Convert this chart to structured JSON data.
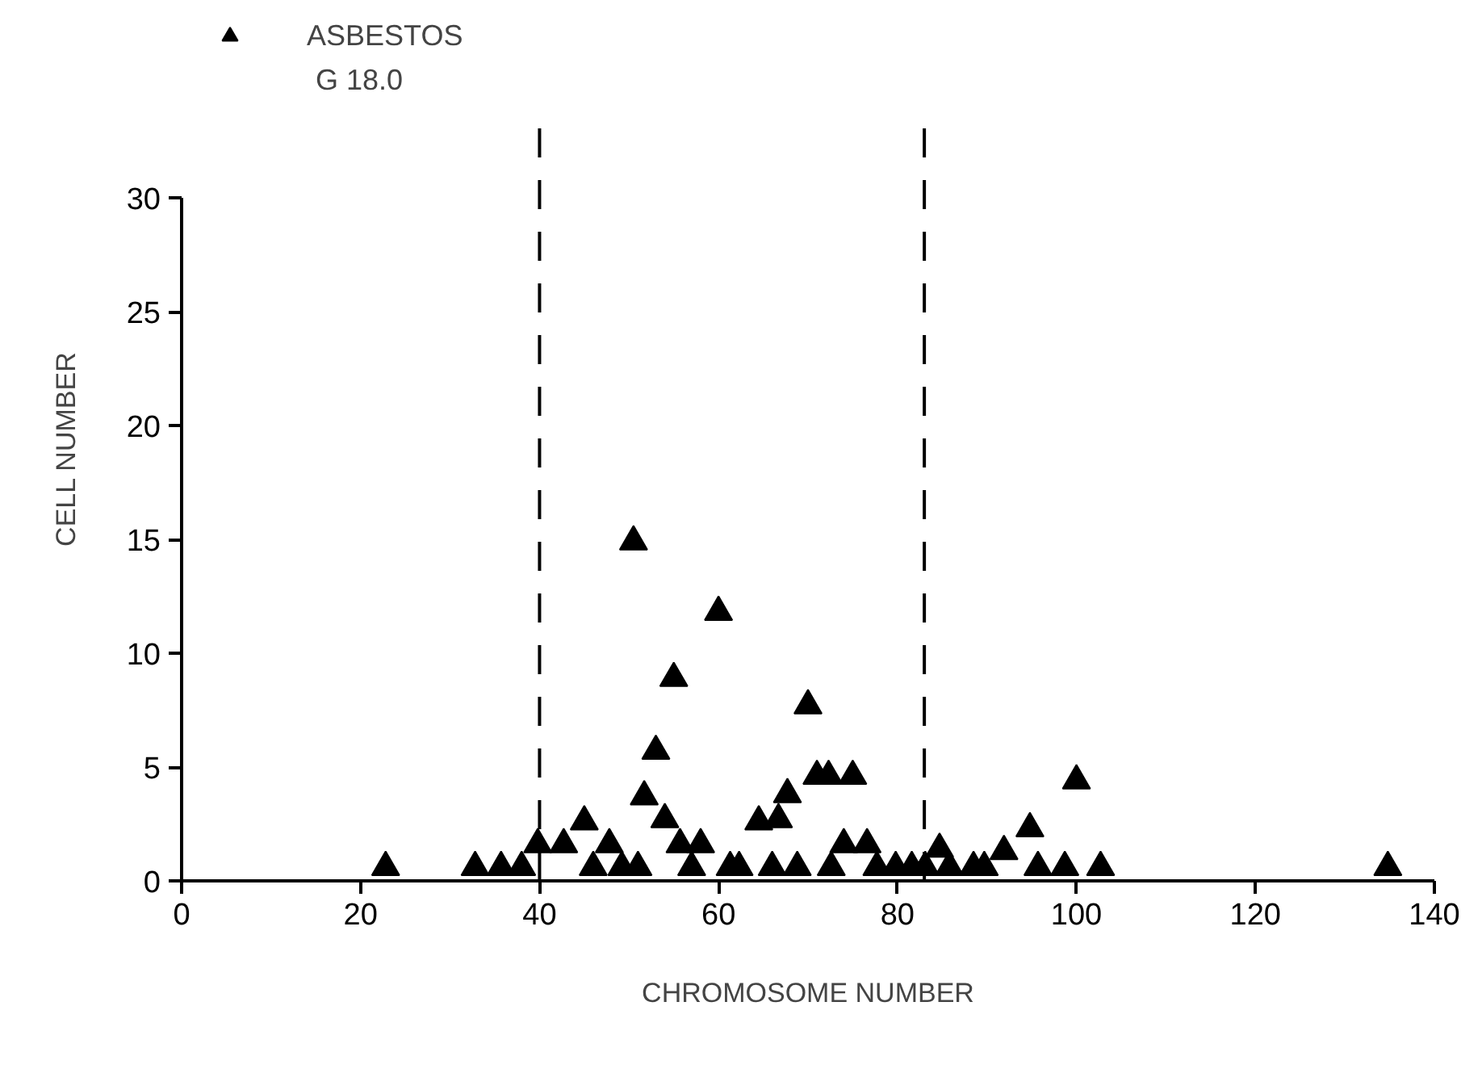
{
  "chart_data": {
    "type": "scatter",
    "xlabel": "CHROMOSOME NUMBER",
    "ylabel": "CELL NUMBER",
    "annotations": [
      "G 18.0"
    ],
    "x": [
      22.8,
      32.8,
      35.7,
      38.0,
      39.8,
      42.7,
      45.0,
      46.0,
      47.8,
      49.2,
      50.5,
      51.0,
      51.7,
      53.0,
      54.0,
      55.0,
      55.7,
      57.0,
      58.0,
      60.0,
      61.3,
      62.3,
      64.5,
      66.0,
      66.7,
      67.7,
      68.8,
      70.0,
      71.0,
      72.3,
      72.6,
      74.0,
      75.0,
      76.6,
      77.7,
      79.8,
      81.6,
      83.1,
      84.7,
      85.8,
      88.5,
      89.7,
      91.9,
      94.8,
      95.7,
      98.7,
      100.0,
      102.7,
      134.8
    ],
    "series": [
      {
        "name": "ASBESTOS",
        "color": "#000000",
        "values": [
          0.6,
          0.6,
          0.6,
          0.6,
          1.6,
          1.6,
          2.6,
          0.6,
          1.6,
          0.6,
          14.9,
          0.6,
          3.7,
          5.7,
          2.7,
          8.9,
          1.6,
          0.6,
          1.6,
          11.8,
          0.6,
          0.6,
          2.6,
          0.6,
          2.7,
          3.8,
          0.6,
          7.7,
          4.6,
          4.6,
          0.6,
          1.6,
          4.6,
          1.6,
          0.6,
          0.6,
          0.6,
          0.6,
          1.4,
          0.6,
          0.6,
          0.6,
          1.3,
          2.3,
          0.6,
          0.6,
          4.4,
          0.6,
          0.6
        ]
      }
    ],
    "xlim": [
      0,
      140
    ],
    "ylim": [
      0,
      30
    ],
    "xticks": [
      0,
      20,
      40,
      60,
      80,
      100,
      120,
      140
    ],
    "yticks": [
      0,
      5,
      10,
      15,
      20,
      25,
      30
    ],
    "ref_lines": [
      {
        "axis": "x",
        "value": 40,
        "line_style": "dashed"
      },
      {
        "axis": "x",
        "value": 83,
        "line_style": "dashed"
      }
    ],
    "marker": "triangle",
    "legend": "top left",
    "grid": false
  }
}
